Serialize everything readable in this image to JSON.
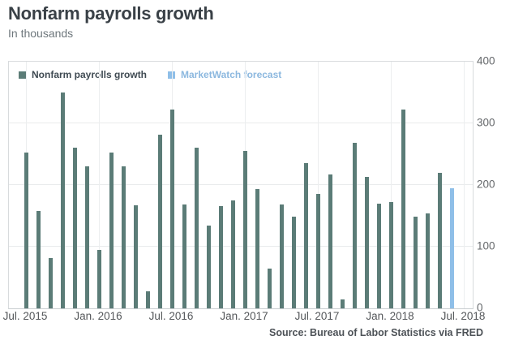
{
  "header": {
    "title": "Nonfarm payrolls growth",
    "subtitle": "In thousands"
  },
  "legend": {
    "series1_label": "Nonfarm payrolls growth",
    "series2_label": "MarketWatch forecast"
  },
  "source": "Source: Bureau of Labor Statistics via FRED",
  "colors": {
    "payrolls_bar": "#5b7c77",
    "forecast_bar": "#8fbfe8",
    "payrolls_legend_text": "#3f4a52",
    "forecast_legend_text": "#8cb8df"
  },
  "chart_data": {
    "type": "bar",
    "title": "Nonfarm payrolls growth",
    "units": "thousands",
    "xlabel": "",
    "ylabel": "",
    "ylim": [
      0,
      400
    ],
    "y_ticks": [
      0,
      100,
      200,
      300,
      400
    ],
    "y_axis_side": "right",
    "grid": true,
    "legend_position": "top-left-inside",
    "x_tick_labels": [
      "Jul. 2015",
      "Jan. 2016",
      "Jul. 2016",
      "Jan. 2017",
      "Jul. 2017",
      "Jan. 2018",
      "Jul. 2018"
    ],
    "series": [
      {
        "name": "Nonfarm payrolls growth",
        "color": "#5b7c77",
        "months": [
          "Jul. 2015",
          "Aug. 2015",
          "Sep. 2015",
          "Oct. 2015",
          "Nov. 2015",
          "Dec. 2015",
          "Jan. 2016",
          "Feb. 2016",
          "Mar. 2016",
          "Apr. 2016",
          "May 2016",
          "Jun. 2016",
          "Jul. 2016",
          "Aug. 2016",
          "Sep. 2016",
          "Oct. 2016",
          "Nov. 2016",
          "Dec. 2016",
          "Jan. 2017",
          "Feb. 2017",
          "Mar. 2017",
          "Apr. 2017",
          "May 2017",
          "Jun. 2017",
          "Jul. 2017",
          "Aug. 2017",
          "Sep. 2017",
          "Oct. 2017",
          "Nov. 2017",
          "Dec. 2017",
          "Jan. 2018",
          "Feb. 2018",
          "Mar. 2018",
          "Apr. 2018",
          "May 2018"
        ],
        "values": [
          253,
          158,
          81,
          350,
          260,
          230,
          95,
          253,
          230,
          167,
          27,
          281,
          322,
          168,
          260,
          134,
          166,
          175,
          255,
          194,
          65,
          168,
          149,
          235,
          186,
          217,
          14,
          268,
          213,
          170,
          172,
          322,
          149,
          154,
          220
        ]
      },
      {
        "name": "MarketWatch forecast",
        "color": "#8fbfe8",
        "months": [
          "Jun. 2018"
        ],
        "values": [
          195
        ]
      }
    ]
  }
}
